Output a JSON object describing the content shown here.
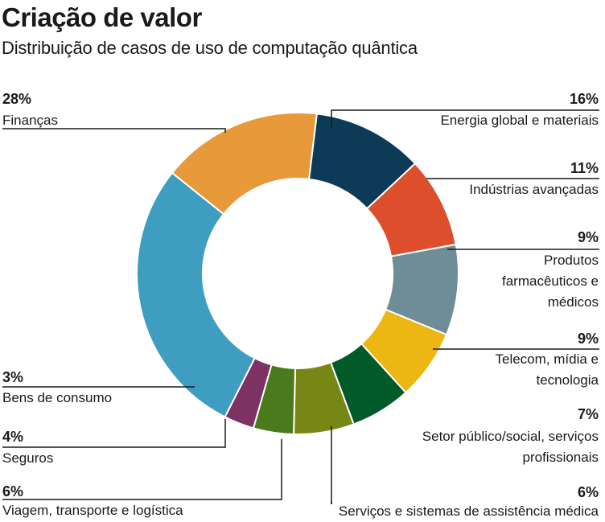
{
  "title": "Criação de valor",
  "subtitle": "Distribuição de casos de uso de computação quântica",
  "chart_data": {
    "type": "pie",
    "title": "Criação de valor",
    "subtitle": "Distribuição de casos de uso de computação quântica",
    "slices": [
      {
        "label": "Energia global e materiais",
        "value": 16,
        "value_label": "16%",
        "color": "#e8993a"
      },
      {
        "label": "Indústrias avançadas",
        "value": 11,
        "value_label": "11%",
        "color": "#0c3a57"
      },
      {
        "label": "Produtos farmacêuticos e médicos",
        "value": 9,
        "value_label": "9%",
        "color": "#dc4e2c"
      },
      {
        "label": "Telecom, mídia e tecnologia",
        "value": 9,
        "value_label": "9%",
        "color": "#6f8d99"
      },
      {
        "label": "Setor público/social, serviços profissionais",
        "value": 7,
        "value_label": "7%",
        "color": "#ecb712"
      },
      {
        "label": "Serviços e sistemas de assistência médica",
        "value": 6,
        "value_label": "6%",
        "color": "#005a2a"
      },
      {
        "label": "Viagem, transporte e logística",
        "value": 6,
        "value_label": "6%",
        "color": "#778715"
      },
      {
        "label": "Seguros",
        "value": 4,
        "value_label": "4%",
        "color": "#4b7a1c"
      },
      {
        "label": "Bens de consumo",
        "value": 3,
        "value_label": "3%",
        "color": "#7e3163"
      },
      {
        "label": "Finanças",
        "value": 28,
        "value_label": "28%",
        "color": "#3f9dc2"
      }
    ],
    "legend": "none"
  }
}
